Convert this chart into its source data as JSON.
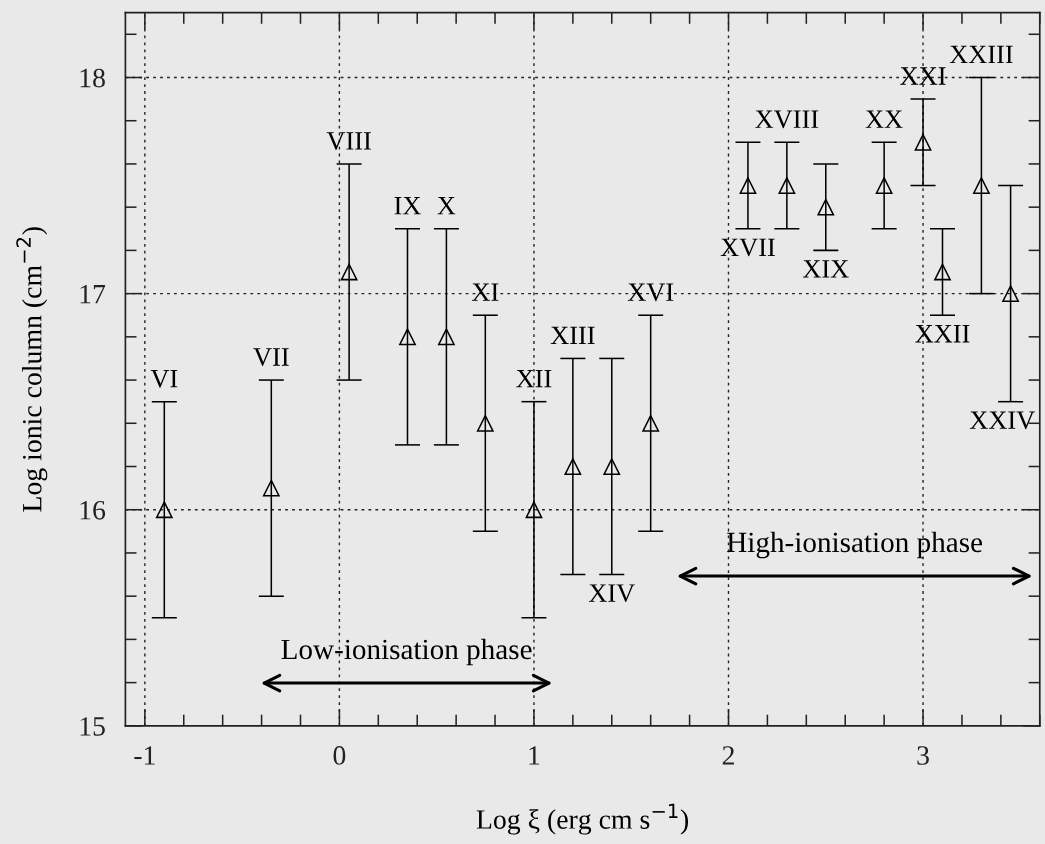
{
  "chart_data": {
    "type": "scatter",
    "xlabel": "Log ξ (erg cm s$^{−1}$)",
    "ylabel": "Log ionic column (cm$^{−2}$)",
    "x": [
      -0.9,
      -0.35,
      0.05,
      0.35,
      0.55,
      0.75,
      1.0,
      1.2,
      1.4,
      1.6,
      2.1,
      2.3,
      2.5,
      2.8,
      3.0,
      3.1,
      3.3,
      3.45
    ],
    "series": [
      {
        "color": "#000000",
        "values": [
          16.0,
          16.1,
          17.1,
          16.8,
          16.8,
          16.4,
          16.0,
          16.2,
          16.2,
          16.4,
          17.5,
          17.5,
          17.4,
          17.5,
          17.7,
          17.1,
          17.5,
          17.0
        ],
        "errors": [
          0.5,
          0.5,
          0.5,
          0.5,
          0.5,
          0.5,
          0.5,
          0.5,
          0.5,
          0.5,
          0.2,
          0.2,
          0.2,
          0.2,
          0.2,
          0.2,
          0.5,
          0.5
        ]
      }
    ],
    "marker": "triangle",
    "annotations": [
      "VI",
      "VII",
      "VIII",
      "IX",
      "X",
      "XI",
      "XII",
      "XIII",
      "XIV",
      "XVI",
      "XVII",
      "XVIII",
      "XIX",
      "XX",
      "XXI",
      "XXII",
      "XXIII",
      "XXIV",
      "Low-ionisation phase",
      "High-ionisation phase"
    ],
    "xlim": [
      -1.1,
      3.6
    ],
    "xticks": [
      -1,
      0,
      1,
      2,
      3
    ],
    "ylim": [
      15,
      18.3
    ],
    "yticks": [
      15,
      16,
      17,
      18
    ],
    "grid": true
  }
}
